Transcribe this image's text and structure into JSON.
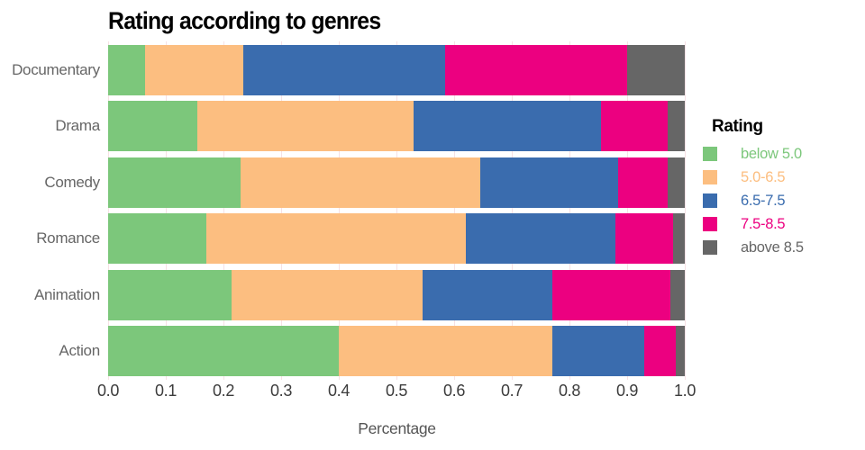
{
  "title": "Rating according to genres",
  "axis": {
    "xlabel": "Percentage",
    "ticks": [
      "0.0",
      "0.1",
      "0.2",
      "0.3",
      "0.4",
      "0.5",
      "0.6",
      "0.7",
      "0.8",
      "0.9",
      "1.0"
    ]
  },
  "legend": {
    "title": "Rating",
    "entries": [
      {
        "label": "below 5.0",
        "color": "#7CC77B"
      },
      {
        "label": "5.0-6.5",
        "color": "#FCBE80"
      },
      {
        "label": "6.5-7.5",
        "color": "#3A6CAE"
      },
      {
        "label": "7.5-8.5",
        "color": "#EC0080"
      },
      {
        "label": "above 8.5",
        "color": "#666666"
      }
    ]
  },
  "chart_data": {
    "type": "bar",
    "orientation": "horizontal",
    "stacked": true,
    "title": "Rating according to genres",
    "xlabel": "Percentage",
    "ylabel": "",
    "xlim": [
      0,
      1.0
    ],
    "grid": true,
    "legend_position": "right",
    "categories": [
      "Documentary",
      "Drama",
      "Comedy",
      "Romance",
      "Animation",
      "Action"
    ],
    "series": [
      {
        "name": "below 5.0",
        "color": "#7CC77B",
        "values": [
          0.065,
          0.155,
          0.23,
          0.17,
          0.215,
          0.4
        ]
      },
      {
        "name": "5.0-6.5",
        "color": "#FCBE80",
        "values": [
          0.17,
          0.375,
          0.415,
          0.45,
          0.33,
          0.37
        ]
      },
      {
        "name": "6.5-7.5",
        "color": "#3A6CAE",
        "values": [
          0.35,
          0.325,
          0.24,
          0.26,
          0.225,
          0.16
        ]
      },
      {
        "name": "7.5-8.5",
        "color": "#EC0080",
        "values": [
          0.315,
          0.115,
          0.085,
          0.1,
          0.205,
          0.055
        ]
      },
      {
        "name": "above 8.5",
        "color": "#666666",
        "values": [
          0.1,
          0.03,
          0.03,
          0.02,
          0.025,
          0.015
        ]
      }
    ]
  },
  "colors": {
    "background": "#FFFFFF",
    "title_text": "#000000",
    "grid": "#F7E1E5",
    "tick_text": "#3C3C3C",
    "category_text": "#666666",
    "axis_label_text": "#555555"
  }
}
